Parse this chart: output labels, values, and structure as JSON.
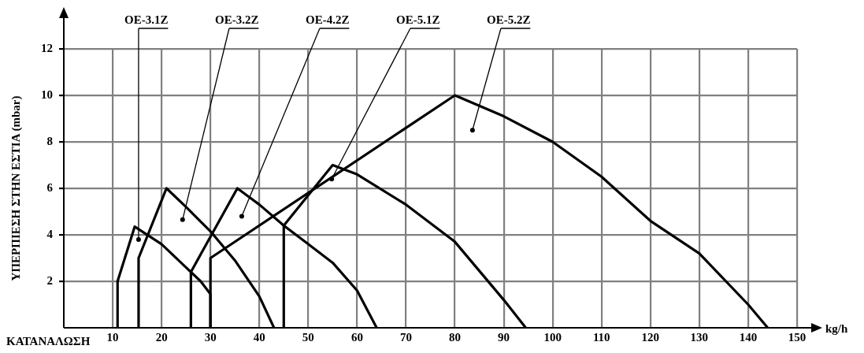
{
  "chart_data": {
    "type": "line",
    "xlabel": "kg/h",
    "ylabel": "ΥΠΕΡΠΙΕΣΗ ΣΤΗΝ ΕΣΤΙΑ (mbar)",
    "xlim": [
      0,
      150
    ],
    "xticks": [
      10,
      20,
      30,
      40,
      50,
      60,
      70,
      80,
      90,
      100,
      110,
      120,
      130,
      140,
      150
    ],
    "ylim": [
      0,
      12
    ],
    "yticks": [
      2,
      4,
      6,
      8,
      10,
      12
    ],
    "grid": true,
    "legend": false,
    "marker": "none",
    "line_style": "solid",
    "series": [
      {
        "color": "#000000",
        "x": [
          11,
          11,
          14.5,
          20,
          25,
          28,
          30,
          30
        ],
        "values": [
          0,
          2,
          4.35,
          3.6,
          2.6,
          2.0,
          1.45,
          0
        ]
      },
      {
        "color": "#000000",
        "x": [
          15.3,
          15.3,
          21,
          25,
          30,
          35,
          40,
          43
        ],
        "values": [
          0,
          3,
          6,
          5.2,
          4.15,
          2.9,
          1.35,
          0
        ]
      },
      {
        "color": "#000000",
        "x": [
          26,
          26,
          35.5,
          40,
          45,
          50,
          55,
          60,
          64
        ],
        "values": [
          0,
          2.4,
          6,
          5.3,
          4.4,
          3.6,
          2.8,
          1.6,
          0
        ]
      },
      {
        "color": "#000000",
        "x": [
          45,
          45,
          55,
          60,
          70,
          80,
          90,
          94.5
        ],
        "values": [
          0,
          4.4,
          7,
          6.6,
          5.3,
          3.7,
          1.2,
          0
        ]
      },
      {
        "color": "#000000",
        "x": [
          30,
          30,
          80,
          90,
          100,
          110,
          120,
          130,
          140,
          144
        ],
        "values": [
          0,
          3,
          10,
          9.1,
          8,
          6.5,
          4.6,
          3.2,
          1,
          0
        ]
      }
    ],
    "annotations": [
      {
        "text": "OE-3.1Z",
        "x": 15.3,
        "y": 3.8
      },
      {
        "text": "OE-3.2Z",
        "x": 24.3,
        "y": 4.65
      },
      {
        "text": "OE-4.2Z",
        "x": 36.4,
        "y": 4.8
      },
      {
        "text": "OE-5.1Z",
        "x": 54.8,
        "y": 6.4
      },
      {
        "text": "OE-5.2Z",
        "x": 83.6,
        "y": 8.5
      },
      "ΚΑΤΑΝΑΛΩΣΗ"
    ]
  }
}
